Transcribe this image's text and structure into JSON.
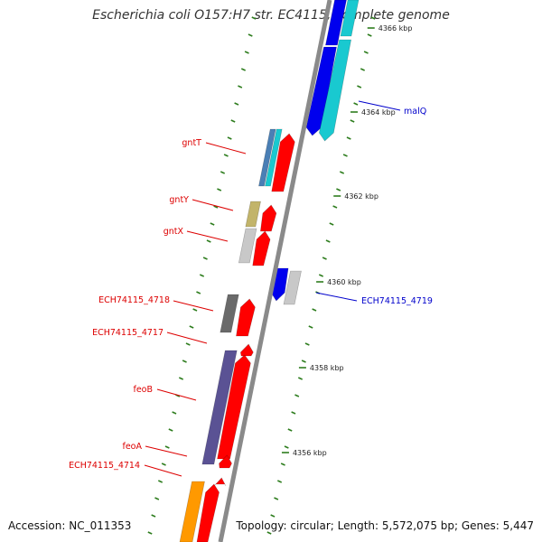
{
  "map": {
    "title": "Escherichia coli O157:H7 str. EC4115, complete genome",
    "accession": "Accession: NC_011353",
    "stats": "Topology: circular; Length: 5,572,075 bp; Genes: 5,447"
  },
  "colors": {
    "backbone": "#8a8a8a",
    "tick": "#2e7d1e",
    "forward_label": "#dd0000",
    "reverse_label": "#0000cc",
    "red": "#ff0000",
    "blue": "#0000ee",
    "cyan": "#19c9d0",
    "steelblue": "#4a7fb5",
    "olive": "#c2b46a",
    "lightgray": "#c8c8c8",
    "darkgray": "#6a6a6a",
    "slate": "#5a5294",
    "orange": "#ff9900"
  },
  "kbp_ticks": [
    {
      "label": "4356 kbp"
    },
    {
      "label": "4358 kbp"
    },
    {
      "label": "4360 kbp"
    },
    {
      "label": "4362 kbp"
    },
    {
      "label": "4364 kbp"
    },
    {
      "label": "4366 kbp"
    }
  ],
  "gene_labels": [
    {
      "text": "gntT",
      "strand": "forward"
    },
    {
      "text": "gntY",
      "strand": "forward"
    },
    {
      "text": "gntX",
      "strand": "forward"
    },
    {
      "text": "ECH74115_4718",
      "strand": "forward"
    },
    {
      "text": "ECH74115_4717",
      "strand": "forward"
    },
    {
      "text": "feoB",
      "strand": "forward"
    },
    {
      "text": "feoA",
      "strand": "forward"
    },
    {
      "text": "ECH74115_4714",
      "strand": "forward"
    },
    {
      "text": "malQ",
      "strand": "reverse"
    },
    {
      "text": "ECH74115_4719",
      "strand": "reverse"
    }
  ]
}
